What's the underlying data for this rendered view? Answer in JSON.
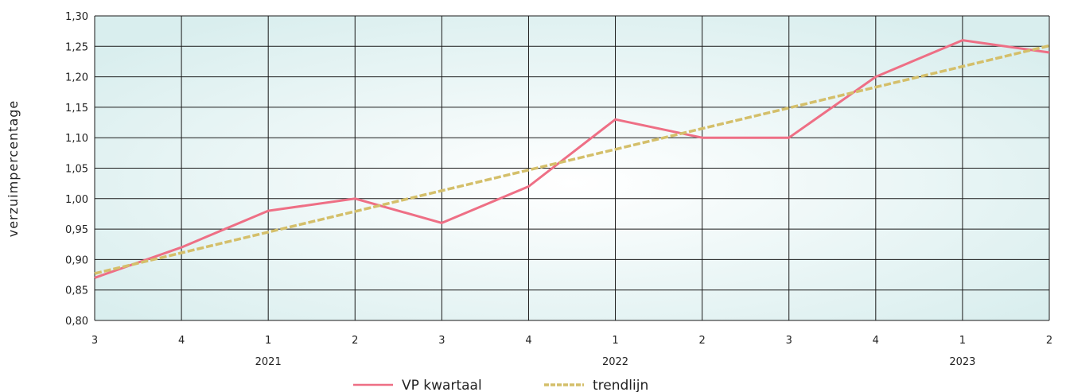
{
  "chart_data": {
    "type": "line",
    "ylabel": "verzuimpercentage",
    "ylim": [
      0.8,
      1.3
    ],
    "yticks": [
      "0,80",
      "0,85",
      "0,90",
      "0,95",
      "1,00",
      "1,05",
      "1,10",
      "1,15",
      "1,20",
      "1,25",
      "1,30"
    ],
    "x": [
      "3",
      "4",
      "1",
      "2",
      "3",
      "4",
      "1",
      "2",
      "3",
      "4",
      "1",
      "2"
    ],
    "year_labels": [
      {
        "label": "2021",
        "x_index": 2
      },
      {
        "label": "2022",
        "x_index": 6
      },
      {
        "label": "2023",
        "x_index": 10
      }
    ],
    "grid": true,
    "legend_position": "bottom",
    "series": [
      {
        "name": "VP kwartaal",
        "style": "solid",
        "color": "#ee6f85",
        "values": [
          0.87,
          0.92,
          0.98,
          1.0,
          0.96,
          1.02,
          1.13,
          1.1,
          1.1,
          1.2,
          1.26,
          1.24
        ]
      },
      {
        "name": "trendlijn",
        "style": "dashed",
        "color": "#d4bf6a",
        "values": [
          0.877,
          0.911,
          0.945,
          0.979,
          1.013,
          1.047,
          1.081,
          1.115,
          1.149,
          1.183,
          1.217,
          1.251
        ]
      }
    ]
  },
  "colors": {
    "plot_center": "#ffffff",
    "plot_edge": "#dceff0",
    "grid": "#1a1a1a"
  }
}
